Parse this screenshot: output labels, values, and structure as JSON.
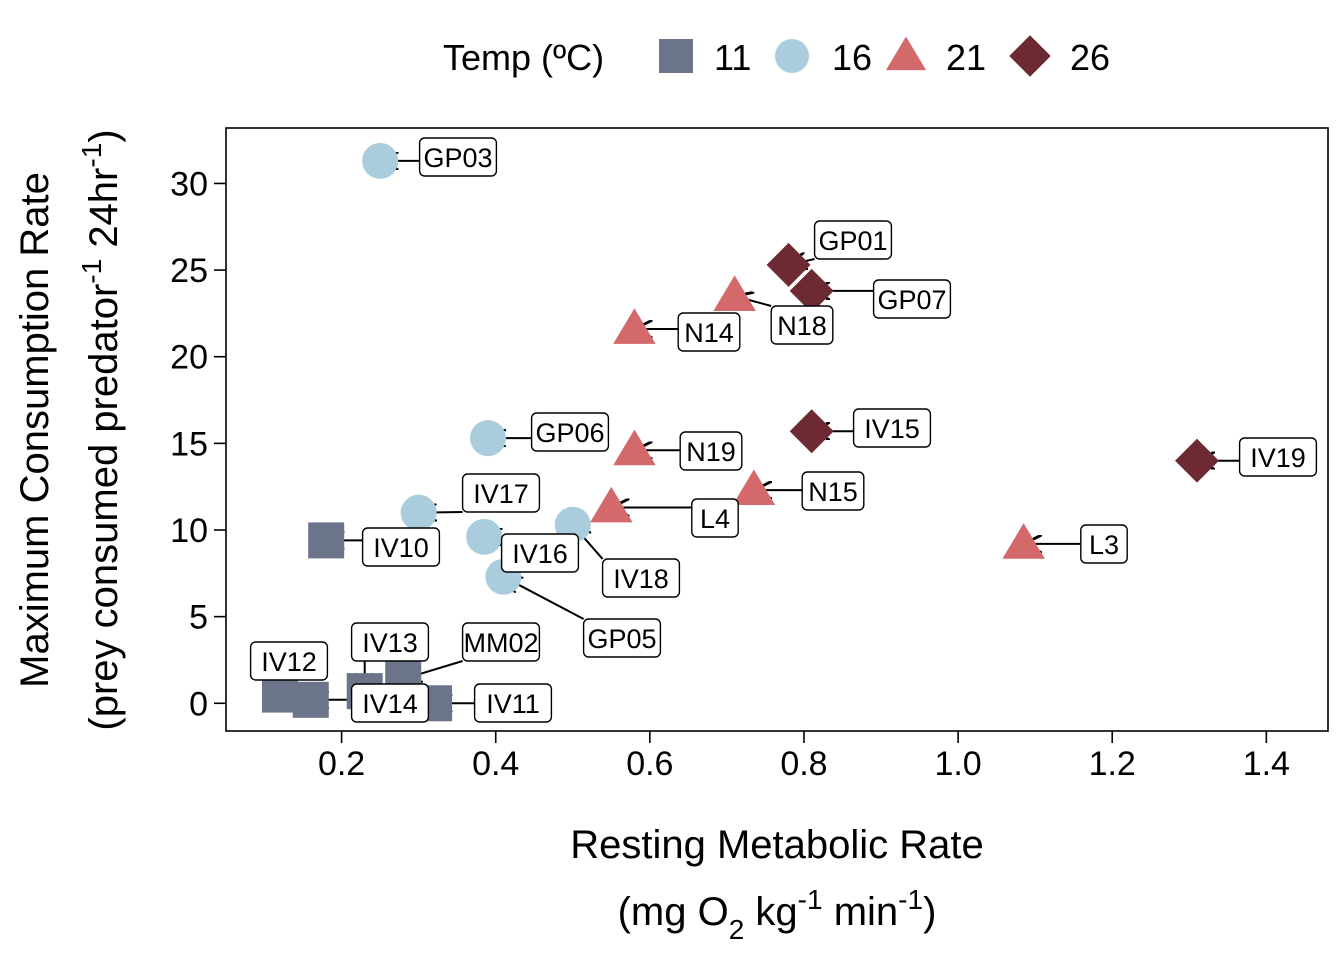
{
  "chart_data": {
    "type": "scatter",
    "legend": {
      "title": "Temp (ºC)",
      "position": "top",
      "entries": [
        {
          "label": "11",
          "shape": "square",
          "color": "#6b7488"
        },
        {
          "label": "16",
          "shape": "circle",
          "color": "#a9cddd"
        },
        {
          "label": "21",
          "shape": "triangle",
          "color": "#d4696c"
        },
        {
          "label": "26",
          "shape": "diamond",
          "color": "#6e2a33"
        }
      ]
    },
    "xlabel": {
      "line1": "Resting Metabolic Rate",
      "line2_parts": [
        "(mg O",
        "2",
        " kg",
        "-1",
        " min",
        "-1",
        ")"
      ]
    },
    "ylabel": {
      "line1": "Maximum Consumption Rate",
      "line2_parts": [
        "(prey consumed predator",
        "-1",
        " 24hr",
        "-1",
        ")"
      ]
    },
    "xlim": [
      0.05,
      1.48
    ],
    "ylim": [
      -1.6,
      33.2
    ],
    "xticks": [
      "0.2",
      "0.4",
      "0.6",
      "0.8",
      "1.0",
      "1.2",
      "1.4"
    ],
    "yticks": [
      "0",
      "5",
      "10",
      "15",
      "20",
      "25",
      "30"
    ],
    "grid": false,
    "series": [
      {
        "name": "11",
        "shape": "square",
        "color": "#6b7488",
        "points": [
          {
            "label": "IV10",
            "x": 0.18,
            "y": 9.4
          },
          {
            "label": "IV12",
            "x": 0.12,
            "y": 0.5
          },
          {
            "label": "IV14",
            "x": 0.16,
            "y": 0.2
          },
          {
            "label": "IV13",
            "x": 0.23,
            "y": 0.7
          },
          {
            "label": "MM02",
            "x": 0.28,
            "y": 1.4
          },
          {
            "label": "IV11",
            "x": 0.32,
            "y": 0.0
          }
        ]
      },
      {
        "name": "16",
        "shape": "circle",
        "color": "#a9cddd",
        "points": [
          {
            "label": "GP03",
            "x": 0.25,
            "y": 31.3
          },
          {
            "label": "GP06",
            "x": 0.39,
            "y": 15.3
          },
          {
            "label": "IV17",
            "x": 0.3,
            "y": 11.0
          },
          {
            "label": "IV16",
            "x": 0.385,
            "y": 9.6
          },
          {
            "label": "IV18",
            "x": 0.5,
            "y": 10.3
          },
          {
            "label": "GP05",
            "x": 0.41,
            "y": 7.3
          }
        ]
      },
      {
        "name": "21",
        "shape": "triangle",
        "color": "#d4696c",
        "points": [
          {
            "label": "N14",
            "x": 0.58,
            "y": 21.6
          },
          {
            "label": "N18",
            "x": 0.71,
            "y": 23.5
          },
          {
            "label": "N19",
            "x": 0.58,
            "y": 14.6
          },
          {
            "label": "L4",
            "x": 0.55,
            "y": 11.3
          },
          {
            "label": "N15",
            "x": 0.735,
            "y": 12.3
          },
          {
            "label": "L3",
            "x": 1.085,
            "y": 9.2
          }
        ]
      },
      {
        "name": "26",
        "shape": "diamond",
        "color": "#6e2a33",
        "points": [
          {
            "label": "GP01",
            "x": 0.78,
            "y": 25.3
          },
          {
            "label": "GP07",
            "x": 0.81,
            "y": 23.8
          },
          {
            "label": "IV15",
            "x": 0.81,
            "y": 15.7
          },
          {
            "label": "IV19",
            "x": 1.31,
            "y": 14.0
          }
        ]
      }
    ]
  }
}
